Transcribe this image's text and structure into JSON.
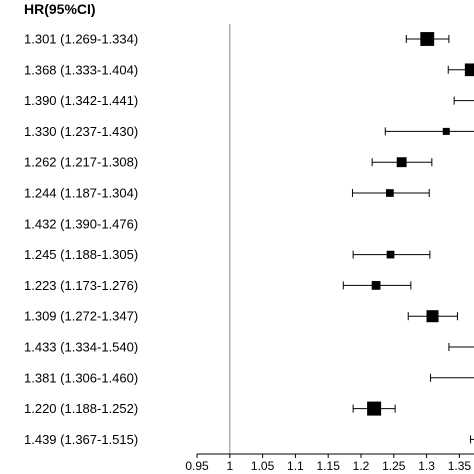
{
  "chart_data": {
    "type": "forest",
    "header": "HR(95%CI)",
    "rows": [
      {
        "label": "1.301 (1.269-1.334)",
        "hr": 1.301,
        "lo": 1.269,
        "hi": 1.334
      },
      {
        "label": "1.368 (1.333-1.404)",
        "hr": 1.368,
        "lo": 1.333,
        "hi": 1.404
      },
      {
        "label": "1.390 (1.342-1.441)",
        "hr": 1.39,
        "lo": 1.342,
        "hi": 1.441
      },
      {
        "label": "1.330 (1.237-1.430)",
        "hr": 1.33,
        "lo": 1.237,
        "hi": 1.43
      },
      {
        "label": "1.262 (1.217-1.308)",
        "hr": 1.262,
        "lo": 1.217,
        "hi": 1.308
      },
      {
        "label": "1.244 (1.187-1.304)",
        "hr": 1.244,
        "lo": 1.187,
        "hi": 1.304
      },
      {
        "label": "1.432 (1.390-1.476)",
        "hr": 1.432,
        "lo": 1.39,
        "hi": 1.476
      },
      {
        "label": "1.245 (1.188-1.305)",
        "hr": 1.245,
        "lo": 1.188,
        "hi": 1.305
      },
      {
        "label": "1.223 (1.173-1.276)",
        "hr": 1.223,
        "lo": 1.173,
        "hi": 1.276
      },
      {
        "label": "1.309 (1.272-1.347)",
        "hr": 1.309,
        "lo": 1.272,
        "hi": 1.347
      },
      {
        "label": "1.433 (1.334-1.540)",
        "hr": 1.433,
        "lo": 1.334,
        "hi": 1.54
      },
      {
        "label": "1.381 (1.306-1.460)",
        "hr": 1.381,
        "lo": 1.306,
        "hi": 1.46
      },
      {
        "label": "1.220 (1.188-1.252)",
        "hr": 1.22,
        "lo": 1.188,
        "hi": 1.252
      },
      {
        "label": "1.439 (1.367-1.515)",
        "hr": 1.439,
        "lo": 1.367,
        "hi": 1.515
      }
    ],
    "x_ticks": [
      "0.95",
      "1",
      "1.05",
      "1.1",
      "1.15",
      "1.2",
      "1.25",
      "1.3",
      "1.35"
    ],
    "reference_line": 1,
    "xlim": [
      0.95,
      1.36
    ],
    "grid": false
  }
}
